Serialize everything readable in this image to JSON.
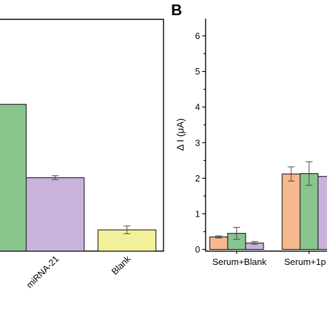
{
  "chart_data": [
    {
      "type": "bar",
      "panel_label": "",
      "categories": [
        "",
        "miRNA-21",
        "Blank"
      ],
      "series": [
        {
          "values": [
            3.8,
            null,
            null
          ],
          "errors": [
            0,
            null,
            null
          ],
          "color": "#8bc58e"
        },
        {
          "values": [
            null,
            1.9,
            null
          ],
          "errors": [
            null,
            0.05,
            null
          ],
          "color": "#c9b3dc"
        },
        {
          "values": [
            null,
            null,
            0.55
          ],
          "errors": [
            null,
            null,
            0.1
          ],
          "color": "#f2f09a"
        }
      ],
      "ylim": [
        0,
        6
      ],
      "grid": false
    },
    {
      "type": "bar",
      "panel_label": "B",
      "ylabel": "Δ I (μA)",
      "yticks": [
        "0",
        "1",
        "2",
        "3",
        "4",
        "5",
        "6"
      ],
      "ylim": [
        0,
        6
      ],
      "categories": [
        "Serum+Blank",
        "Serum+1p"
      ],
      "series": [
        {
          "values": [
            0.35,
            2.12
          ],
          "errors": [
            0.03,
            0.2
          ],
          "color": "#f6b88e"
        },
        {
          "values": [
            0.45,
            2.13
          ],
          "errors": [
            0.17,
            0.33
          ],
          "color": "#8bc58e"
        },
        {
          "values": [
            0.18,
            2.05
          ],
          "errors": [
            0.04,
            0
          ],
          "color": "#c9b3dc"
        }
      ],
      "grid": false
    }
  ]
}
